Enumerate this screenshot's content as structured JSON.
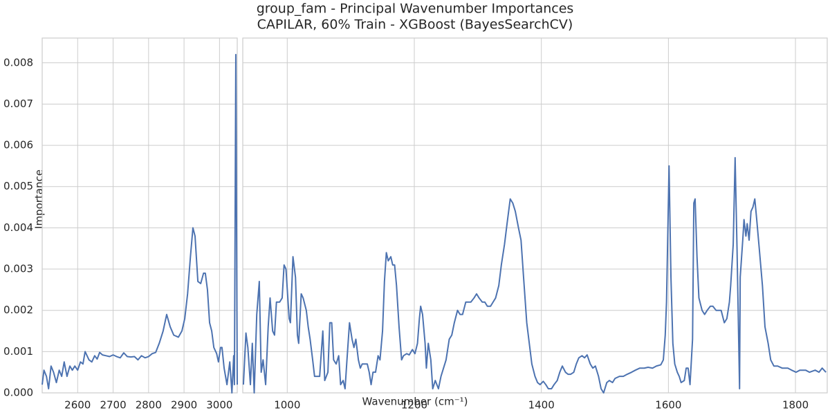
{
  "chart_data": [
    {
      "type": "line",
      "title": "group_fam - Principal Wavenumber Importances",
      "subtitle": "CAPILAR, 60% Train - XGBoost (BayesSearchCV)",
      "xlabel": "Wavenumber (cm⁻¹)",
      "ylabel": "Importance",
      "grid": true,
      "xlim": [
        2500,
        3050
      ],
      "xticks": [
        2600,
        2700,
        2800,
        2900,
        3000
      ],
      "ylim": [
        0,
        0.0086
      ],
      "yticks": [
        {
          "value": 0,
          "label": "0.000"
        },
        0.001,
        0.002,
        0.003,
        0.004,
        0.005,
        0.006,
        0.007,
        0.008
      ],
      "color": "#4c72b0",
      "x": [
        2500,
        2505,
        2512,
        2518,
        2525,
        2532,
        2540,
        2548,
        2555,
        2562,
        2570,
        2578,
        2585,
        2592,
        2600,
        2608,
        2615,
        2621,
        2632,
        2640,
        2648,
        2655,
        2662,
        2670,
        2680,
        2690,
        2700,
        2710,
        2720,
        2730,
        2740,
        2750,
        2760,
        2770,
        2780,
        2790,
        2800,
        2810,
        2820,
        2830,
        2841,
        2851,
        2861,
        2871,
        2884,
        2894,
        2902,
        2910,
        2918,
        2925,
        2931,
        2939,
        2947,
        2955,
        2960,
        2966,
        2972,
        2978,
        2984,
        2992,
        2997,
        3003,
        3007,
        3013,
        3021,
        3029,
        3035,
        3040,
        3042,
        3046,
        3050
      ],
      "values": [
        0.0002,
        0.00055,
        0.0004,
        0.0001,
        0.00065,
        0.0005,
        0.00025,
        0.00055,
        0.0004,
        0.00075,
        0.0004,
        0.00065,
        0.00055,
        0.00065,
        0.00055,
        0.00075,
        0.0007,
        0.001,
        0.0008,
        0.00075,
        0.0009,
        0.00082,
        0.00098,
        0.00092,
        0.0009,
        0.00088,
        0.00092,
        0.00088,
        0.00085,
        0.00097,
        0.00088,
        0.00087,
        0.00088,
        0.0008,
        0.0009,
        0.00085,
        0.00088,
        0.00095,
        0.00098,
        0.0012,
        0.0015,
        0.0019,
        0.0016,
        0.0014,
        0.00135,
        0.0015,
        0.0018,
        0.0024,
        0.0033,
        0.004,
        0.0038,
        0.0027,
        0.00265,
        0.0029,
        0.0029,
        0.0025,
        0.0017,
        0.0015,
        0.0011,
        0.00095,
        0.00075,
        0.0011,
        0.0011,
        0.0006,
        0.0002,
        0.00075,
        0,
        0.0009,
        0.0002,
        0.0082,
        0.0002
      ]
    },
    {
      "type": "line",
      "xlim": [
        930,
        1850
      ],
      "xticks": [
        1000,
        1200,
        1400,
        1600,
        1800
      ],
      "color": "#4c72b0",
      "x": [
        931,
        935,
        938,
        942,
        945,
        948,
        952,
        956,
        959,
        962,
        966,
        970,
        973,
        977,
        980,
        983,
        988,
        992,
        995,
        998,
        1003,
        1005,
        1009,
        1013,
        1016,
        1018,
        1022,
        1025,
        1030,
        1033,
        1036,
        1040,
        1043,
        1048,
        1051,
        1056,
        1059,
        1064,
        1067,
        1070,
        1073,
        1077,
        1081,
        1084,
        1088,
        1091,
        1094,
        1098,
        1102,
        1105,
        1108,
        1112,
        1115,
        1118,
        1121,
        1126,
        1129,
        1132,
        1135,
        1139,
        1143,
        1146,
        1150,
        1153,
        1156,
        1159,
        1163,
        1166,
        1169,
        1172,
        1176,
        1180,
        1183,
        1188,
        1192,
        1197,
        1201,
        1205,
        1208,
        1210,
        1213,
        1217,
        1219,
        1222,
        1226,
        1229,
        1233,
        1238,
        1242,
        1246,
        1250,
        1255,
        1259,
        1263,
        1268,
        1272,
        1276,
        1281,
        1285,
        1289,
        1294,
        1298,
        1302,
        1307,
        1311,
        1315,
        1320,
        1324,
        1328,
        1333,
        1337,
        1342,
        1346,
        1351,
        1355,
        1359,
        1364,
        1368,
        1372,
        1377,
        1381,
        1385,
        1390,
        1394,
        1398,
        1403,
        1407,
        1411,
        1416,
        1420,
        1425,
        1429,
        1433,
        1438,
        1442,
        1446,
        1451,
        1455,
        1459,
        1464,
        1468,
        1472,
        1477,
        1481,
        1485,
        1490,
        1494,
        1498,
        1503,
        1507,
        1512,
        1516,
        1523,
        1529,
        1535,
        1542,
        1548,
        1555,
        1562,
        1568,
        1575,
        1581,
        1588,
        1592,
        1595,
        1597,
        1601,
        1604,
        1607,
        1610,
        1614,
        1617,
        1620,
        1625,
        1628,
        1631,
        1634,
        1638,
        1640,
        1642,
        1645,
        1648,
        1653,
        1657,
        1661,
        1666,
        1670,
        1675,
        1679,
        1683,
        1688,
        1692,
        1696,
        1698,
        1702,
        1705,
        1708,
        1712,
        1713,
        1717,
        1719,
        1722,
        1724,
        1727,
        1730,
        1733,
        1736,
        1739,
        1743,
        1748,
        1752,
        1757,
        1761,
        1766,
        1772,
        1779,
        1788,
        1794,
        1801,
        1807,
        1816,
        1822,
        1831,
        1837,
        1842,
        1848
      ],
      "values": [
        0.0002,
        0.00145,
        0.0011,
        0.0002,
        0.0012,
        0,
        0.0019,
        0.0027,
        0.0005,
        0.0008,
        0.0002,
        0.0016,
        0.0023,
        0.0015,
        0.0014,
        0.0022,
        0.0022,
        0.0023,
        0.0031,
        0.003,
        0.0018,
        0.0017,
        0.0033,
        0.0028,
        0.0014,
        0.0012,
        0.0024,
        0.0023,
        0.002,
        0.0016,
        0.0013,
        0.0008,
        0.0004,
        0.0004,
        0.0004,
        0.0015,
        0.0003,
        0.0005,
        0.0017,
        0.0017,
        0.0008,
        0.0007,
        0.0009,
        0.0002,
        0.0003,
        0.0001,
        0.0008,
        0.0017,
        0.0013,
        0.0011,
        0.0013,
        0.0008,
        0.0006,
        0.0007,
        0.0007,
        0.0007,
        0.0005,
        0.0002,
        0.0005,
        0.0005,
        0.0009,
        0.0008,
        0.0015,
        0.0027,
        0.0034,
        0.0032,
        0.0033,
        0.0031,
        0.0031,
        0.0026,
        0.0016,
        0.0008,
        0.0009,
        0.00095,
        0.00092,
        0.00105,
        0.00095,
        0.0012,
        0.0018,
        0.0021,
        0.0019,
        0.0012,
        0.0006,
        0.0012,
        0.0008,
        0.0001,
        0.0003,
        0.0001,
        0.0004,
        0.0006,
        0.0008,
        0.0013,
        0.0014,
        0.0017,
        0.002,
        0.0019,
        0.0019,
        0.0022,
        0.0022,
        0.0022,
        0.0023,
        0.0024,
        0.0023,
        0.0022,
        0.0022,
        0.0021,
        0.0021,
        0.0022,
        0.0023,
        0.0026,
        0.0031,
        0.0036,
        0.0041,
        0.0047,
        0.0046,
        0.0044,
        0.004,
        0.0037,
        0.0028,
        0.0017,
        0.0012,
        0.0007,
        0.0004,
        0.00025,
        0.0002,
        0.00028,
        0.0002,
        0.0001,
        0.0001,
        0.0002,
        0.0003,
        0.0005,
        0.00065,
        0.0005,
        0.00045,
        0.00045,
        0.0005,
        0.0007,
        0.00085,
        0.0009,
        0.00085,
        0.00092,
        0.0007,
        0.0006,
        0.00065,
        0.0004,
        0.0001,
        0,
        0.00025,
        0.0003,
        0.00025,
        0.00035,
        0.0004,
        0.0004,
        0.00045,
        0.0005,
        0.00055,
        0.0006,
        0.0006,
        0.00062,
        0.0006,
        0.00065,
        0.00068,
        0.0008,
        0.0014,
        0.0022,
        0.0055,
        0.0028,
        0.0012,
        0.0007,
        0.0005,
        0.0004,
        0.00025,
        0.0003,
        0.0006,
        0.0006,
        0.0002,
        0.0013,
        0.0046,
        0.0047,
        0.0033,
        0.0023,
        0.002,
        0.0019,
        0.002,
        0.0021,
        0.0021,
        0.002,
        0.002,
        0.002,
        0.0017,
        0.0018,
        0.0022,
        0.0026,
        0.0036,
        0.0057,
        0.0035,
        0.0001,
        0.0028,
        0.0037,
        0.0042,
        0.0038,
        0.0041,
        0.0037,
        0.0044,
        0.0045,
        0.0047,
        0.0042,
        0.0035,
        0.0026,
        0.0016,
        0.0012,
        0.0008,
        0.00065,
        0.00065,
        0.0006,
        0.0006,
        0.00055,
        0.0005,
        0.00055,
        0.00055,
        0.0005,
        0.00055,
        0.0005,
        0.0006,
        0.0005
      ]
    }
  ]
}
